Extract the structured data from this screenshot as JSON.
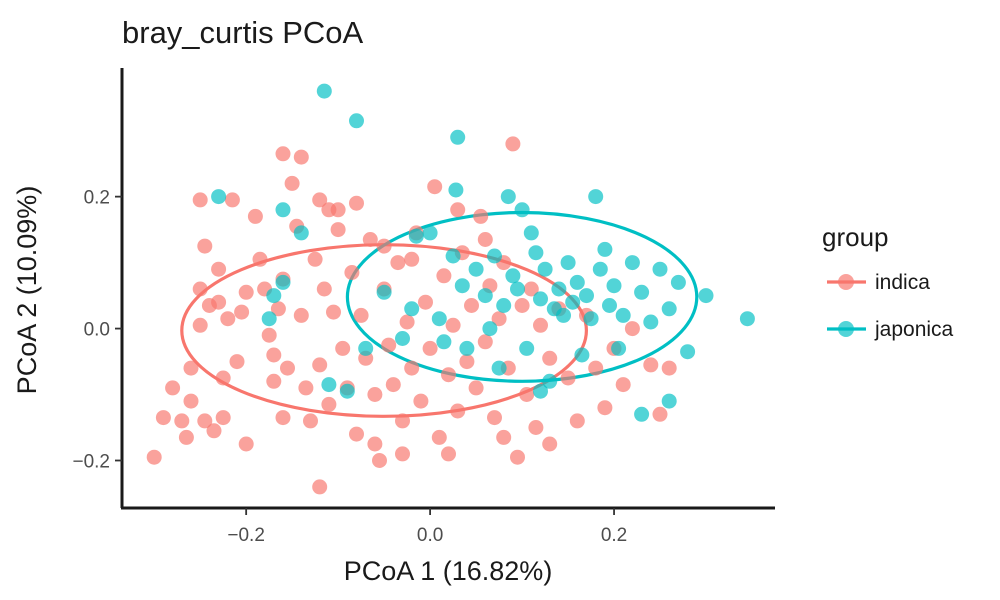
{
  "chart_data": {
    "type": "scatter",
    "title": "bray_curtis PCoA",
    "xlabel": "PCoA 1 (16.82%)",
    "ylabel": "PCoA 2 (10.09%)",
    "xlim": [
      -0.335,
      0.375
    ],
    "ylim": [
      -0.272,
      0.395
    ],
    "x_ticks": [
      -0.2,
      0.0,
      0.2
    ],
    "x_tick_labels": [
      "−0.2",
      "0.0",
      "0.2"
    ],
    "y_ticks": [
      -0.2,
      0.0,
      0.2
    ],
    "y_tick_labels": [
      "−0.2",
      "0.0",
      "0.2"
    ],
    "grid": false,
    "legend": {
      "title": "group",
      "position": "right"
    },
    "series": [
      {
        "name": "indica",
        "color": "#F8766D",
        "ellipse": {
          "center": [
            -0.05,
            -0.003
          ],
          "radii": [
            0.22,
            0.13
          ]
        },
        "points": [
          [
            -0.3,
            -0.195
          ],
          [
            -0.29,
            -0.135
          ],
          [
            -0.28,
            -0.09
          ],
          [
            -0.27,
            -0.14
          ],
          [
            -0.265,
            -0.165
          ],
          [
            -0.26,
            -0.11
          ],
          [
            -0.26,
            -0.06
          ],
          [
            -0.25,
            0.06
          ],
          [
            -0.25,
            0.005
          ],
          [
            -0.25,
            0.195
          ],
          [
            -0.245,
            0.125
          ],
          [
            -0.245,
            -0.14
          ],
          [
            -0.24,
            0.035
          ],
          [
            -0.235,
            -0.155
          ],
          [
            -0.23,
            0.09
          ],
          [
            -0.23,
            0.04
          ],
          [
            -0.225,
            -0.075
          ],
          [
            -0.225,
            -0.135
          ],
          [
            -0.22,
            0.015
          ],
          [
            -0.215,
            0.195
          ],
          [
            -0.21,
            -0.05
          ],
          [
            -0.205,
            0.025
          ],
          [
            -0.2,
            0.055
          ],
          [
            -0.2,
            -0.175
          ],
          [
            -0.19,
            0.17
          ],
          [
            -0.185,
            0.105
          ],
          [
            -0.18,
            0.06
          ],
          [
            -0.175,
            -0.01
          ],
          [
            -0.17,
            -0.04
          ],
          [
            -0.17,
            -0.08
          ],
          [
            -0.165,
            0.03
          ],
          [
            -0.16,
            0.075
          ],
          [
            -0.16,
            -0.135
          ],
          [
            -0.155,
            -0.06
          ],
          [
            -0.15,
            0.22
          ],
          [
            -0.145,
            0.155
          ],
          [
            -0.14,
            0.02
          ],
          [
            -0.135,
            -0.09
          ],
          [
            -0.13,
            -0.14
          ],
          [
            -0.125,
            0.105
          ],
          [
            -0.12,
            -0.055
          ],
          [
            -0.115,
            0.06
          ],
          [
            -0.11,
            -0.115
          ],
          [
            -0.105,
            0.025
          ],
          [
            -0.1,
            0.18
          ],
          [
            -0.095,
            -0.03
          ],
          [
            -0.09,
            -0.09
          ],
          [
            -0.085,
            0.085
          ],
          [
            -0.08,
            -0.16
          ],
          [
            -0.075,
            0.02
          ],
          [
            -0.07,
            -0.045
          ],
          [
            -0.065,
            0.135
          ],
          [
            -0.06,
            -0.1
          ],
          [
            -0.055,
            -0.2
          ],
          [
            -0.05,
            0.06
          ],
          [
            -0.045,
            -0.025
          ],
          [
            -0.04,
            -0.085
          ],
          [
            -0.035,
            0.1
          ],
          [
            -0.03,
            -0.14
          ],
          [
            -0.025,
            0.01
          ],
          [
            -0.02,
            -0.06
          ],
          [
            -0.015,
            0.145
          ],
          [
            -0.01,
            -0.11
          ],
          [
            -0.005,
            0.04
          ],
          [
            0.0,
            -0.03
          ],
          [
            0.005,
            0.215
          ],
          [
            0.01,
            -0.165
          ],
          [
            0.015,
            0.08
          ],
          [
            0.02,
            -0.07
          ],
          [
            0.025,
            0.005
          ],
          [
            0.03,
            -0.125
          ],
          [
            0.035,
            0.115
          ],
          [
            0.04,
            -0.05
          ],
          [
            0.045,
            0.035
          ],
          [
            0.05,
            -0.09
          ],
          [
            0.055,
            0.17
          ],
          [
            0.06,
            -0.02
          ],
          [
            0.065,
            0.065
          ],
          [
            0.07,
            -0.135
          ],
          [
            0.075,
            0.015
          ],
          [
            0.08,
            0.1
          ],
          [
            0.085,
            -0.06
          ],
          [
            0.09,
            0.28
          ],
          [
            0.095,
            -0.195
          ],
          [
            0.1,
            0.035
          ],
          [
            0.105,
            -0.1
          ],
          [
            0.11,
            0.06
          ],
          [
            0.115,
            -0.15
          ],
          [
            0.12,
            0.005
          ],
          [
            0.13,
            -0.045
          ],
          [
            0.14,
            0.03
          ],
          [
            0.15,
            -0.075
          ],
          [
            0.16,
            -0.14
          ],
          [
            0.17,
            0.02
          ],
          [
            0.18,
            -0.06
          ],
          [
            0.19,
            -0.12
          ],
          [
            0.2,
            -0.03
          ],
          [
            0.21,
            -0.085
          ],
          [
            0.22,
            0.0
          ],
          [
            0.24,
            -0.055
          ],
          [
            0.25,
            -0.13
          ],
          [
            0.26,
            -0.06
          ],
          [
            -0.16,
            0.265
          ],
          [
            -0.14,
            0.26
          ],
          [
            -0.12,
            0.195
          ],
          [
            -0.11,
            0.18
          ],
          [
            -0.1,
            0.15
          ],
          [
            -0.08,
            0.19
          ],
          [
            -0.05,
            0.125
          ],
          [
            -0.02,
            0.105
          ],
          [
            0.03,
            0.18
          ],
          [
            0.06,
            0.135
          ],
          [
            -0.12,
            -0.24
          ],
          [
            -0.06,
            -0.175
          ],
          [
            -0.03,
            -0.19
          ],
          [
            0.02,
            -0.19
          ],
          [
            0.08,
            -0.165
          ],
          [
            0.13,
            -0.175
          ]
        ]
      },
      {
        "name": "japonica",
        "color": "#00BFC4",
        "ellipse": {
          "center": [
            0.1,
            0.048
          ],
          "radii": [
            0.19,
            0.128
          ]
        },
        "points": [
          [
            -0.115,
            0.36
          ],
          [
            -0.08,
            0.315
          ],
          [
            0.03,
            0.29
          ],
          [
            -0.23,
            0.2
          ],
          [
            -0.16,
            0.18
          ],
          [
            -0.14,
            0.145
          ],
          [
            -0.17,
            0.05
          ],
          [
            -0.16,
            0.07
          ],
          [
            -0.175,
            0.015
          ],
          [
            -0.11,
            -0.085
          ],
          [
            -0.09,
            -0.095
          ],
          [
            -0.07,
            -0.03
          ],
          [
            -0.05,
            0.055
          ],
          [
            -0.03,
            -0.015
          ],
          [
            -0.02,
            0.03
          ],
          [
            -0.015,
            0.14
          ],
          [
            0.0,
            0.145
          ],
          [
            0.01,
            0.015
          ],
          [
            0.015,
            -0.02
          ],
          [
            0.025,
            0.11
          ],
          [
            0.028,
            0.21
          ],
          [
            0.035,
            0.065
          ],
          [
            0.04,
            -0.03
          ],
          [
            0.05,
            0.09
          ],
          [
            0.06,
            0.05
          ],
          [
            0.065,
            0.0
          ],
          [
            0.07,
            0.11
          ],
          [
            0.075,
            -0.06
          ],
          [
            0.08,
            0.035
          ],
          [
            0.085,
            0.2
          ],
          [
            0.09,
            0.08
          ],
          [
            0.095,
            0.06
          ],
          [
            0.1,
            0.18
          ],
          [
            0.105,
            -0.03
          ],
          [
            0.11,
            0.145
          ],
          [
            0.115,
            0.115
          ],
          [
            0.12,
            0.045
          ],
          [
            0.125,
            0.09
          ],
          [
            0.13,
            -0.08
          ],
          [
            0.135,
            0.03
          ],
          [
            0.14,
            0.06
          ],
          [
            0.145,
            0.02
          ],
          [
            0.15,
            0.1
          ],
          [
            0.155,
            0.04
          ],
          [
            0.16,
            0.07
          ],
          [
            0.165,
            -0.04
          ],
          [
            0.17,
            0.05
          ],
          [
            0.175,
            0.015
          ],
          [
            0.18,
            0.2
          ],
          [
            0.185,
            0.09
          ],
          [
            0.19,
            0.12
          ],
          [
            0.195,
            0.035
          ],
          [
            0.2,
            0.065
          ],
          [
            0.205,
            -0.03
          ],
          [
            0.21,
            0.02
          ],
          [
            0.22,
            0.1
          ],
          [
            0.23,
            0.055
          ],
          [
            0.24,
            0.01
          ],
          [
            0.25,
            0.09
          ],
          [
            0.26,
            0.03
          ],
          [
            0.27,
            0.07
          ],
          [
            0.28,
            -0.035
          ],
          [
            0.3,
            0.05
          ],
          [
            0.345,
            0.015
          ],
          [
            0.26,
            -0.11
          ],
          [
            0.23,
            -0.13
          ],
          [
            0.12,
            -0.095
          ]
        ]
      }
    ]
  }
}
